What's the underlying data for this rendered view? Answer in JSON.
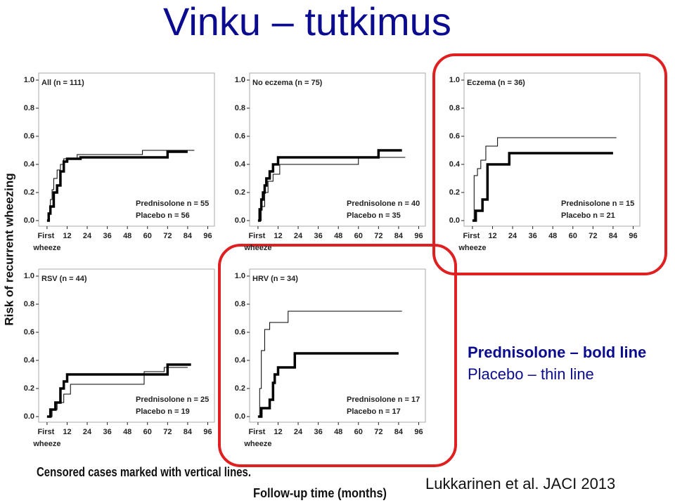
{
  "title": "Vinku – tutkimus",
  "y_label": "Risk of recurrent wheezing",
  "x_label": "Follow-up time (months)",
  "note": "Censored cases marked with vertical lines.",
  "legend_note": [
    "Prednisolone – bold line",
    "Placebo – thin line"
  ],
  "citation": "Lukkarinen et al. JACI 2013",
  "chart_data": [
    {
      "type": "line",
      "title": "All (n = 111)",
      "xlim": [
        -5,
        100
      ],
      "ylim": [
        -0.04,
        1.05
      ],
      "xticks": [
        {
          "value": 0,
          "label": "First wheeze"
        },
        12,
        24,
        36,
        48,
        60,
        72,
        84,
        96
      ],
      "yticks": [
        {
          "value": 0,
          "label": "0.0"
        },
        0.2,
        0.4,
        0.6,
        0.8,
        {
          "value": 1,
          "label": "1.0"
        }
      ],
      "series": [
        {
          "name": "Prednisolone n = 55",
          "color": "#000000",
          "width": 3.5,
          "x": [
            0,
            1,
            1,
            2,
            2,
            4,
            4,
            6,
            6,
            8,
            8,
            10,
            10,
            12,
            12,
            20,
            20,
            72,
            72,
            84
          ],
          "values": [
            0,
            0,
            0.05,
            0.05,
            0.1,
            0.1,
            0.2,
            0.2,
            0.25,
            0.25,
            0.35,
            0.35,
            0.42,
            0.42,
            0.44,
            0.44,
            0.45,
            0.45,
            0.49,
            0.49
          ]
        },
        {
          "name": "Placebo n = 56",
          "color": "#000000",
          "width": 1,
          "x": [
            0,
            1,
            1,
            2,
            2,
            3,
            3,
            4,
            4,
            6,
            6,
            8,
            8,
            10,
            10,
            18,
            18,
            57,
            57,
            88
          ],
          "values": [
            0,
            0,
            0.05,
            0.05,
            0.15,
            0.15,
            0.22,
            0.22,
            0.3,
            0.3,
            0.36,
            0.36,
            0.4,
            0.4,
            0.44,
            0.44,
            0.47,
            0.47,
            0.5,
            0.5
          ]
        }
      ]
    },
    {
      "type": "line",
      "title": "No eczema (n = 75)",
      "xlim": [
        -5,
        100
      ],
      "ylim": [
        -0.04,
        1.05
      ],
      "xticks": [
        {
          "value": 0,
          "label": "First wheeze"
        },
        12,
        24,
        36,
        48,
        60,
        72,
        84,
        96
      ],
      "yticks": [
        {
          "value": 0,
          "label": "0.0"
        },
        0.2,
        0.4,
        0.6,
        0.8,
        {
          "value": 1,
          "label": "1.0"
        }
      ],
      "series": [
        {
          "name": "Prednisolone n = 40",
          "color": "#000000",
          "width": 3.5,
          "x": [
            0,
            1,
            1,
            2,
            2,
            3,
            3,
            4,
            4,
            5,
            5,
            7,
            7,
            9,
            9,
            12,
            12,
            72,
            72,
            86
          ],
          "values": [
            0,
            0,
            0.08,
            0.08,
            0.15,
            0.15,
            0.2,
            0.2,
            0.25,
            0.25,
            0.3,
            0.3,
            0.35,
            0.35,
            0.4,
            0.4,
            0.45,
            0.45,
            0.5,
            0.5
          ]
        },
        {
          "name": "Placebo n = 35",
          "color": "#000000",
          "width": 1,
          "x": [
            0,
            2,
            2,
            4,
            4,
            6,
            6,
            9,
            9,
            13,
            13,
            60,
            60,
            88
          ],
          "values": [
            0,
            0,
            0.1,
            0.1,
            0.2,
            0.2,
            0.28,
            0.28,
            0.33,
            0.33,
            0.4,
            0.4,
            0.45,
            0.45
          ]
        }
      ]
    },
    {
      "type": "line",
      "title": "Eczema (n = 36)",
      "xlim": [
        -5,
        100
      ],
      "ylim": [
        -0.04,
        1.05
      ],
      "xticks": [
        {
          "value": 0,
          "label": "First wheeze"
        },
        12,
        24,
        36,
        48,
        60,
        72,
        84,
        96
      ],
      "yticks": [
        {
          "value": 0,
          "label": "0.0"
        },
        0.2,
        0.4,
        0.6,
        0.8,
        {
          "value": 1,
          "label": "1.0"
        }
      ],
      "series": [
        {
          "name": "Prednisolone n = 15",
          "color": "#000000",
          "width": 3.5,
          "x": [
            0,
            2,
            2,
            6,
            6,
            9,
            9,
            22,
            22,
            84
          ],
          "values": [
            0,
            0,
            0.07,
            0.07,
            0.15,
            0.15,
            0.4,
            0.4,
            0.48,
            0.48
          ]
        },
        {
          "name": "Placebo n = 21",
          "color": "#000000",
          "width": 1,
          "x": [
            0,
            1,
            1,
            3,
            3,
            5,
            5,
            8,
            8,
            15,
            15,
            86
          ],
          "values": [
            0,
            0,
            0.32,
            0.32,
            0.37,
            0.37,
            0.43,
            0.43,
            0.53,
            0.53,
            0.59,
            0.59
          ]
        }
      ]
    },
    {
      "type": "line",
      "title": "RSV (n = 44)",
      "xlim": [
        -5,
        100
      ],
      "ylim": [
        -0.04,
        1.05
      ],
      "xticks": [
        {
          "value": 0,
          "label": "First wheeze"
        },
        12,
        24,
        36,
        48,
        60,
        72,
        84,
        96
      ],
      "yticks": [
        {
          "value": 0,
          "label": "0.0"
        },
        0.2,
        0.4,
        0.6,
        0.8,
        {
          "value": 1,
          "label": "1.0"
        }
      ],
      "series": [
        {
          "name": "Prednisolone n = 25",
          "color": "#000000",
          "width": 3.5,
          "x": [
            0,
            2,
            2,
            5,
            5,
            8,
            8,
            10,
            10,
            12,
            12,
            72,
            72,
            86
          ],
          "values": [
            0,
            0,
            0.05,
            0.05,
            0.1,
            0.1,
            0.2,
            0.2,
            0.25,
            0.25,
            0.3,
            0.3,
            0.37,
            0.37
          ]
        },
        {
          "name": "Placebo n = 19",
          "color": "#000000",
          "width": 1,
          "x": [
            0,
            3,
            3,
            6,
            6,
            10,
            10,
            14,
            14,
            58,
            58,
            70,
            70,
            84
          ],
          "values": [
            0,
            0,
            0.05,
            0.05,
            0.1,
            0.1,
            0.16,
            0.16,
            0.23,
            0.23,
            0.32,
            0.32,
            0.35,
            0.35
          ]
        }
      ]
    },
    {
      "type": "line",
      "title": "HRV (n = 34)",
      "xlim": [
        -5,
        100
      ],
      "ylim": [
        -0.04,
        1.05
      ],
      "xticks": [
        {
          "value": 0,
          "label": "First wheeze"
        },
        12,
        24,
        36,
        48,
        60,
        72,
        84,
        96
      ],
      "yticks": [
        {
          "value": 0,
          "label": "0.0"
        },
        0.2,
        0.4,
        0.6,
        0.8,
        {
          "value": 1,
          "label": "1.0"
        }
      ],
      "series": [
        {
          "name": "Prednisolone n = 17",
          "color": "#000000",
          "width": 3.5,
          "x": [
            0,
            2,
            2,
            7,
            7,
            9,
            9,
            10,
            10,
            12,
            12,
            22,
            22,
            84
          ],
          "values": [
            0,
            0,
            0.06,
            0.06,
            0.12,
            0.12,
            0.24,
            0.24,
            0.3,
            0.3,
            0.35,
            0.35,
            0.45,
            0.45
          ]
        },
        {
          "name": "Placebo n = 17",
          "color": "#000000",
          "width": 1,
          "x": [
            0,
            1,
            1,
            2,
            2,
            4,
            4,
            7,
            7,
            18,
            18,
            86
          ],
          "values": [
            0,
            0,
            0.2,
            0.2,
            0.47,
            0.47,
            0.62,
            0.62,
            0.67,
            0.67,
            0.75,
            0.75
          ]
        }
      ]
    }
  ]
}
